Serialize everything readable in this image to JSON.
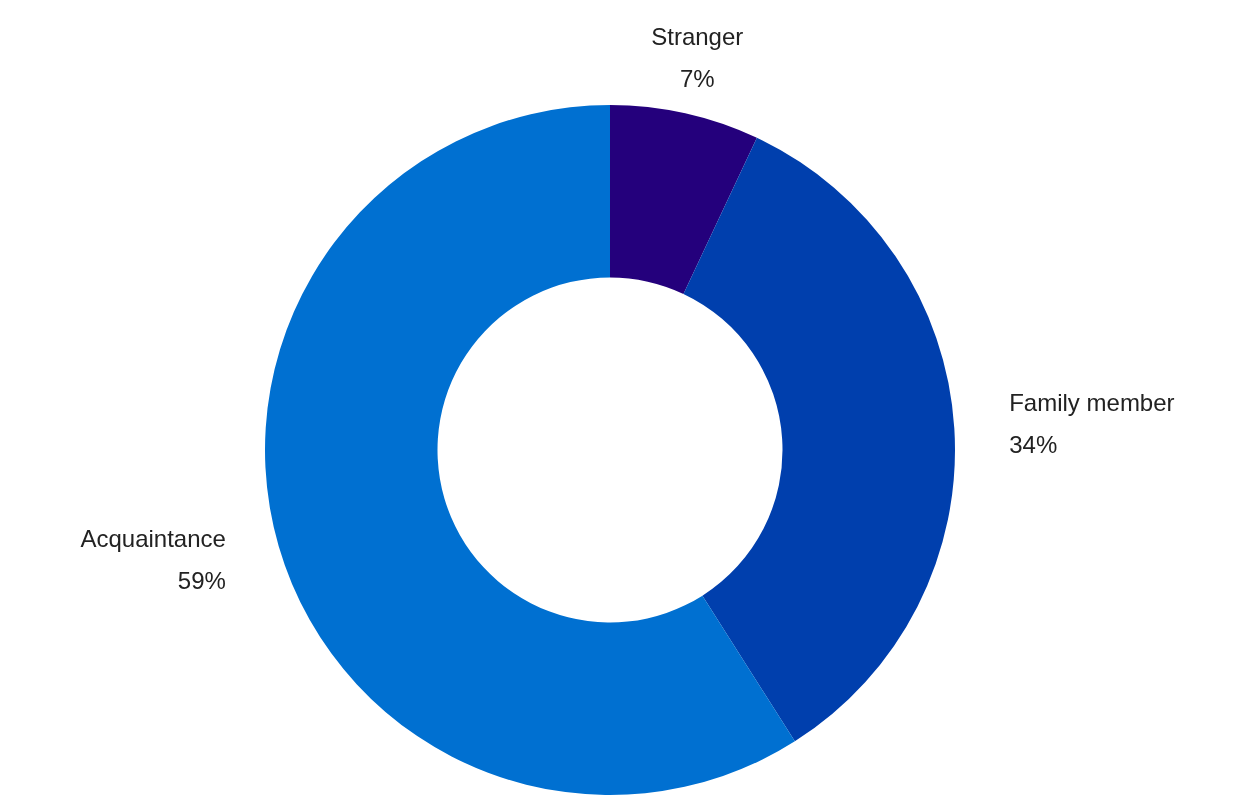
{
  "chart_data": {
    "type": "donut",
    "categories": [
      "Stranger",
      "Family member",
      "Acquaintance"
    ],
    "values": [
      7,
      34,
      59
    ],
    "colors": [
      "#24007c",
      "#003fad",
      "#0070d1"
    ],
    "value_labels": [
      "7%",
      "34%",
      "59%"
    ],
    "legend": false
  }
}
